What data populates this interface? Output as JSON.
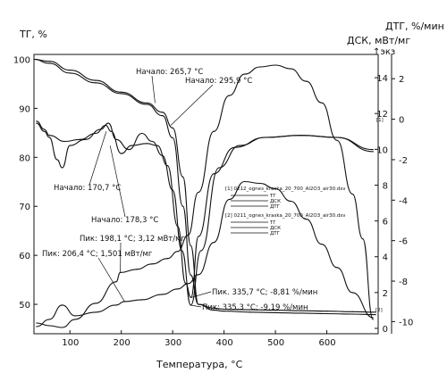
{
  "chart_data": {
    "type": "line",
    "title": "",
    "xlabel": "Температура, °C",
    "ylabel_left": "ТГ, %",
    "ylabel_right_outer": "ДТГ, %/мин",
    "ylabel_right_inner": "ДСК, мВт/мг",
    "exo_marker": "↑экз",
    "xlim": [
      30,
      700
    ],
    "ylim_left": [
      44,
      101
    ],
    "ylim_dsc": [
      -0.3,
      15.3
    ],
    "ylim_dtg": [
      -10.6,
      3.2
    ],
    "x_ticks": [
      "100",
      "200",
      "300",
      "400",
      "500",
      "600"
    ],
    "y_ticks_left": [
      "100",
      "90",
      "80",
      "70",
      "60",
      "50"
    ],
    "y_ticks_dsc": [
      "14",
      "12",
      "10",
      "8",
      "6",
      "4",
      "2",
      "0"
    ],
    "y_ticks_dtg": [
      "2",
      "0",
      "-2",
      "-4",
      "-6",
      "-8",
      "-10"
    ],
    "grid": false,
    "legend_position": "center-right",
    "legend": {
      "file1": "[1] 0212_ogneз_kraska_20_700_Al2O3_air30.dsv",
      "file2": "[2] 0211_ogneз_kraska_20_700_Al2O3_air30.dsv",
      "entries": [
        "ТГ",
        "ДСК",
        "ДТГ"
      ]
    },
    "curve_markers": [
      "[1]",
      "[2]"
    ],
    "annotations": {
      "onset1": "Начало: 265,7 °C",
      "onset2": "Начало: 295,9 °C",
      "onset3": "Начало: 170,7 °C",
      "onset4": "Начало: 178,3 °C",
      "peak1": "Пик: 198,1 °C; 3,12 мВт/мг",
      "peak2": "Пик: 206,4 °C; 1,501 мВт/мг",
      "peak3": "Пик. 335,7 °C; -8,81 %/мин",
      "peak4": "Пик: 335,3 °C; -9,19 %/мин"
    },
    "series": [
      {
        "name": "ТГ [1]",
        "axis": "left",
        "x": [
          30,
          60,
          100,
          150,
          200,
          250,
          280,
          300,
          320,
          335,
          350,
          380,
          400,
          450,
          500,
          550,
          600,
          650,
          695
        ],
        "y": [
          100,
          99.6,
          97.8,
          95.7,
          93.3,
          91.1,
          89.2,
          86,
          76,
          62,
          50,
          48.8,
          48.6,
          48.4,
          48.3,
          48.2,
          48.1,
          48,
          47.9
        ]
      },
      {
        "name": "ТГ [2]",
        "axis": "left",
        "x": [
          30,
          60,
          100,
          150,
          200,
          250,
          280,
          300,
          320,
          335,
          350,
          380,
          400,
          450,
          500,
          550,
          600,
          650,
          695
        ],
        "y": [
          100,
          99.2,
          97.2,
          95.2,
          93,
          90.8,
          88.5,
          84,
          70,
          56,
          50,
          49.2,
          49,
          48.9,
          48.8,
          48.7,
          48.6,
          48.5,
          48.4
        ]
      },
      {
        "name": "ДСК [1]",
        "axis": "dsc",
        "x": [
          35,
          60,
          85,
          110,
          150,
          190,
          198,
          230,
          260,
          290,
          310,
          330,
          350,
          380,
          410,
          440,
          470,
          500,
          530,
          560,
          590,
          620,
          650,
          670,
          690
        ],
        "y": [
          0.3,
          0.15,
          0.05,
          0.5,
          1.4,
          2.6,
          3.12,
          3.3,
          3.6,
          3.9,
          4.3,
          5.2,
          7.6,
          11,
          13,
          14.2,
          14.6,
          14.7,
          14.5,
          13.8,
          12.6,
          10.5,
          7.5,
          5,
          0.5
        ]
      },
      {
        "name": "ДСК [2]",
        "axis": "dsc",
        "x": [
          35,
          60,
          85,
          110,
          150,
          190,
          206,
          240,
          280,
          310,
          330,
          350,
          380,
          410,
          440,
          470,
          500,
          530,
          560,
          590,
          620,
          650,
          690
        ],
        "y": [
          0.1,
          0.5,
          1.3,
          0.7,
          0.9,
          1.3,
          1.5,
          1.6,
          1.9,
          2.2,
          2.5,
          3,
          4.8,
          7.2,
          8.2,
          8.1,
          7.8,
          7.1,
          6.1,
          4.7,
          3.4,
          2,
          0.6
        ]
      },
      {
        "name": "ДТГ [1]",
        "axis": "dtg",
        "x": [
          35,
          50,
          60,
          90,
          120,
          150,
          170,
          180,
          200,
          220,
          250,
          270,
          290,
          310,
          325,
          335.7,
          350,
          380,
          420,
          480,
          550,
          620,
          690
        ],
        "y": [
          -0.1,
          -0.5,
          -0.8,
          -1.1,
          -1.0,
          -0.7,
          -0.3,
          -0.6,
          -1.7,
          -1.3,
          -1.2,
          -1.3,
          -2.3,
          -5.3,
          -8.1,
          -8.81,
          -5.8,
          -2.7,
          -1.4,
          -0.9,
          -0.8,
          -0.9,
          -1.6
        ]
      },
      {
        "name": "ДТГ [2]",
        "axis": "dtg",
        "x": [
          35,
          50,
          60,
          75,
          85,
          100,
          130,
          160,
          175,
          190,
          215,
          240,
          260,
          280,
          300,
          318,
          335.3,
          355,
          390,
          430,
          480,
          550,
          620,
          690
        ],
        "y": [
          -0.2,
          -0.6,
          -0.9,
          -2.0,
          -2.4,
          -1.3,
          -1.0,
          -0.5,
          -0.2,
          -1.0,
          -1.5,
          -0.7,
          -1.1,
          -1.8,
          -3.5,
          -6.5,
          -9.19,
          -6.5,
          -2.4,
          -1.3,
          -0.9,
          -0.8,
          -0.9,
          -1.5
        ]
      }
    ]
  }
}
